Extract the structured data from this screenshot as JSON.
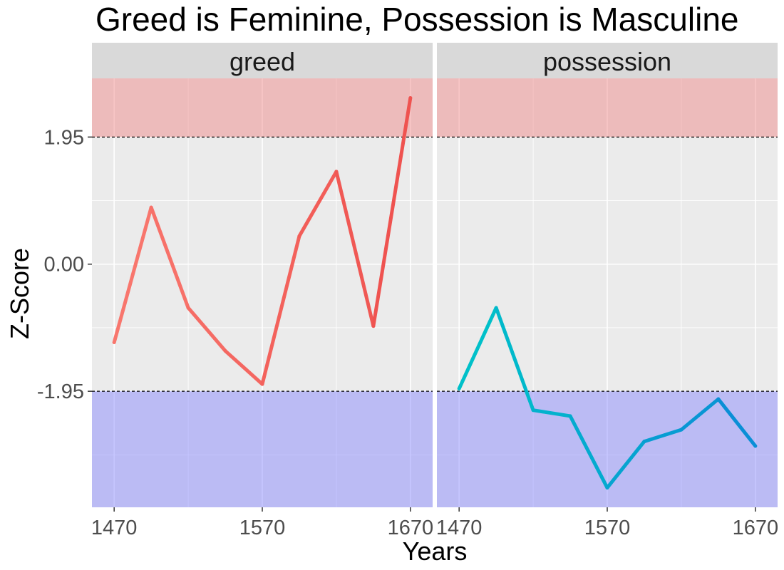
{
  "chart_data": {
    "type": "line",
    "title": "Greed is Feminine, Possession is Masculine",
    "xlabel": "Years",
    "ylabel": "Z-Score",
    "x_ticks": [
      1470,
      1570,
      1670
    ],
    "y_ticks": [
      {
        "value": -1.95,
        "label": "-1.95"
      },
      {
        "value": 0,
        "label": "0.00"
      },
      {
        "value": 1.95,
        "label": "1.95"
      }
    ],
    "ylim": [
      -3.73,
      2.85
    ],
    "xlim": [
      1455,
      1685
    ],
    "threshold_lines": [
      1.95,
      -1.95
    ],
    "bands": {
      "upper": {
        "from": 1.95,
        "color": "#f08080"
      },
      "lower": {
        "to": -1.95,
        "color": "#8080ff"
      }
    },
    "grid": true,
    "facets": [
      {
        "label": "greed",
        "series": [
          {
            "x": [
              1470,
              1495,
              1520,
              1545,
              1570,
              1595,
              1620,
              1645,
              1670
            ],
            "values": [
              -1.2,
              0.87,
              -0.67,
              -1.33,
              -1.84,
              0.43,
              1.42,
              -0.95,
              2.55
            ],
            "color_start": "#f8766d",
            "color_end": "#ef5350"
          }
        ]
      },
      {
        "label": "possession",
        "series": [
          {
            "x": [
              1470,
              1495,
              1520,
              1545,
              1570,
              1595,
              1620,
              1645,
              1670
            ],
            "values": [
              -1.91,
              -0.67,
              -2.24,
              -2.33,
              -3.43,
              -2.72,
              -2.54,
              -2.07,
              -2.79
            ],
            "color_start": "#00c0c9",
            "color_end": "#0a8fd6"
          }
        ]
      }
    ]
  }
}
